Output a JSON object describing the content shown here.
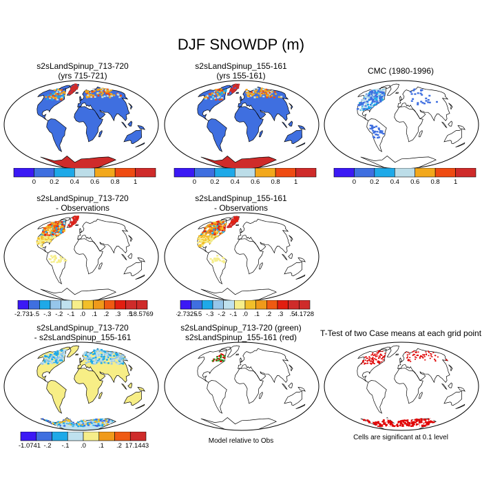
{
  "title": "DJF SNOWDP (m)",
  "colors": {
    "scale": [
      "#3b19f5",
      "#3f6fe0",
      "#1ea9e8",
      "#bcdde8",
      "#f2a81c",
      "#ef4b12",
      "#cf2b2a"
    ],
    "diff": [
      "#3b19f5",
      "#3f6fe0",
      "#1ea9e8",
      "#96c6ea",
      "#bfe1ee",
      "#f6ee8a",
      "#f2bf2a",
      "#f09a1a",
      "#ef5a12",
      "#e21e10",
      "#cf2b2a"
    ],
    "land": "#3f6fe0",
    "antarctica": "#cf2b2a",
    "diffland": "#f7ee86",
    "sig": "#e00000",
    "green": "#1a9a1a",
    "outline": "#000000"
  },
  "panels": [
    {
      "line1": "s2sLandSpinup_713-720",
      "line2": "(yrs 715-721)"
    },
    {
      "line1": "s2sLandSpinup_155-161",
      "line2": "(yrs 155-161)"
    },
    {
      "line1": "CMC (1980-1996)",
      "line2": ""
    },
    {
      "line1": "s2sLandSpinup_713-720",
      "line2": "- Observations"
    },
    {
      "line1": "s2sLandSpinup_155-161",
      "line2": "- Observations"
    },
    {
      "line1": "s2sLandSpinup_713-720",
      "line2": "- s2sLandSpinup_155-161"
    },
    {
      "line1": "s2sLandSpinup_713-720 (green)",
      "line2": "s2sLandSpinup_155-161 (red)"
    },
    {
      "line1": "T-Test of two Case means at each grid point",
      "line2": ""
    }
  ],
  "colorbars": {
    "abs": {
      "labels": [
        "0",
        "0.2",
        "0.4",
        "0.6",
        "0.8",
        "1"
      ]
    },
    "diff1": {
      "labels": [
        "-2.731",
        "-.5",
        "-.3",
        "-.2",
        "-.1",
        ".0",
        ".1",
        ".2",
        ".3",
        ".5",
        "18.5769"
      ]
    },
    "diff2": {
      "labels": [
        "-2.7325",
        "-.5",
        "-.3",
        "-.2",
        "-.1",
        ".0",
        ".1",
        ".2",
        ".3",
        ".5",
        "4.1728"
      ]
    },
    "diff3": {
      "labels": [
        "-1.0741",
        "-.2",
        "-.1",
        ".0",
        ".1",
        ".2",
        "17.1443"
      ]
    }
  },
  "notes": {
    "model_relative": "Model relative to Obs",
    "significance": "Cells are significant at 0.1 level"
  },
  "chart_data": [
    {
      "type": "heatmap",
      "title": "s2sLandSpinup_713-720 (yrs 715-721)",
      "variable": "DJF SNOWDP",
      "units": "m",
      "range": [
        0,
        1.2
      ],
      "levels": [
        0,
        0.2,
        0.4,
        0.6,
        0.8,
        1
      ]
    },
    {
      "type": "heatmap",
      "title": "s2sLandSpinup_155-161 (yrs 155-161)",
      "variable": "DJF SNOWDP",
      "units": "m",
      "range": [
        0,
        1.2
      ],
      "levels": [
        0,
        0.2,
        0.4,
        0.6,
        0.8,
        1
      ]
    },
    {
      "type": "heatmap",
      "title": "CMC (1980-1996)",
      "variable": "DJF SNOWDP",
      "units": "m",
      "range": [
        0,
        1.2
      ],
      "levels": [
        0,
        0.2,
        0.4,
        0.6,
        0.8,
        1
      ]
    },
    {
      "type": "heatmap",
      "title": "s2sLandSpinup_713-720 - Observations",
      "min": -2.731,
      "max": 18.5769,
      "levels": [
        -0.5,
        -0.3,
        -0.2,
        -0.1,
        0,
        0.1,
        0.2,
        0.3,
        0.5
      ]
    },
    {
      "type": "heatmap",
      "title": "s2sLandSpinup_155-161 - Observations",
      "min": -2.7325,
      "max": 4.1728,
      "levels": [
        -0.5,
        -0.3,
        -0.2,
        -0.1,
        0,
        0.1,
        0.2,
        0.3,
        0.5
      ]
    },
    {
      "type": "heatmap",
      "title": "s2sLandSpinup_713-720 - s2sLandSpinup_155-161",
      "min": -1.0741,
      "max": 17.1443,
      "levels": [
        -0.2,
        -0.1,
        0,
        0.1,
        0.2
      ]
    },
    {
      "type": "heatmap",
      "title": "s2sLandSpinup_713-720 (green) s2sLandSpinup_155-161 (red)",
      "note": "Model relative to Obs"
    },
    {
      "type": "heatmap",
      "title": "T-Test of two Case means at each grid point",
      "note": "Cells are significant at 0.1 level"
    }
  ]
}
